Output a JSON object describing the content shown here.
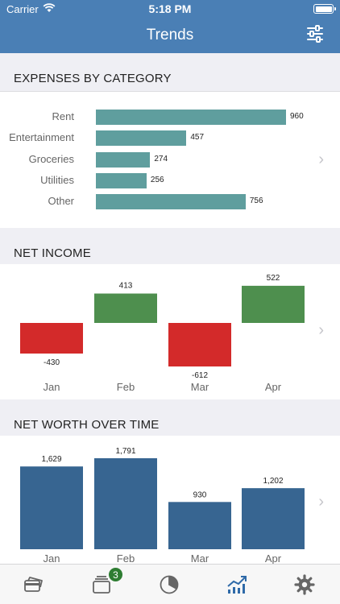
{
  "status": {
    "carrier": "Carrier",
    "time": "5:18 PM"
  },
  "header": {
    "title": "Trends"
  },
  "sections": {
    "expenses": {
      "title": "EXPENSES BY CATEGORY"
    },
    "net_income": {
      "title": "NET INCOME"
    },
    "net_worth": {
      "title": "NET WORTH OVER TIME"
    }
  },
  "tabs": [
    {
      "icon": "cards-icon"
    },
    {
      "icon": "accounts-icon",
      "badge": "3"
    },
    {
      "icon": "pie-chart-icon"
    },
    {
      "icon": "trends-icon",
      "active": true
    },
    {
      "icon": "gear-icon"
    }
  ],
  "colors": {
    "header": "#4a7fb5",
    "category_bar": "#5f9e9e",
    "positive": "#4e8f4e",
    "negative": "#d32a2a",
    "networth": "#376591",
    "active_tab": "#2f6aa8"
  },
  "chart_data": [
    {
      "type": "bar",
      "orientation": "horizontal",
      "title": "EXPENSES BY CATEGORY",
      "categories": [
        "Rent",
        "Entertainment",
        "Groceries",
        "Utilities",
        "Other"
      ],
      "values": [
        960,
        457,
        274,
        256,
        756
      ],
      "value_labels": [
        "960",
        "457",
        "274",
        "256",
        "756"
      ]
    },
    {
      "type": "bar",
      "title": "NET INCOME",
      "categories": [
        "Jan",
        "Feb",
        "Mar",
        "Apr"
      ],
      "values": [
        -430,
        413,
        -612,
        522
      ],
      "value_labels": [
        "-430",
        "413",
        "-612",
        "522"
      ]
    },
    {
      "type": "bar",
      "title": "NET WORTH OVER TIME",
      "categories": [
        "Jan",
        "Feb",
        "Mar",
        "Apr"
      ],
      "values": [
        1629,
        1791,
        930,
        1202
      ],
      "value_labels": [
        "1,629",
        "1,791",
        "930",
        "1,202"
      ]
    }
  ]
}
